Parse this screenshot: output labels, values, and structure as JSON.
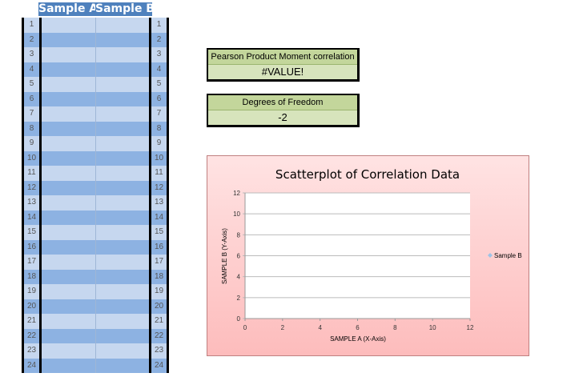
{
  "table": {
    "headers": [
      "Sample A",
      "Sample B"
    ],
    "row_count": 24
  },
  "stats": [
    {
      "label": "Pearson Product Moment correlation",
      "value": "#VALUE!"
    },
    {
      "label": "Degrees of Freedom",
      "value": "-2"
    }
  ],
  "chart_data": {
    "type": "scatter",
    "title": "Scatterplot of Correlation Data",
    "xlabel": "SAMPLE A (X-Axis)",
    "ylabel": "SAMPLE B (Y-Axis)",
    "xlim": [
      0,
      12
    ],
    "ylim": [
      0,
      12
    ],
    "xticks": [
      "0",
      "2",
      "4",
      "6",
      "8",
      "10",
      "12"
    ],
    "yticks": [
      "0",
      "2",
      "4",
      "6",
      "8",
      "10",
      "12"
    ],
    "grid": true,
    "legend": "right",
    "series": [
      {
        "name": "Sample B",
        "color": "#9dc3e6",
        "x": [],
        "y": []
      }
    ]
  }
}
